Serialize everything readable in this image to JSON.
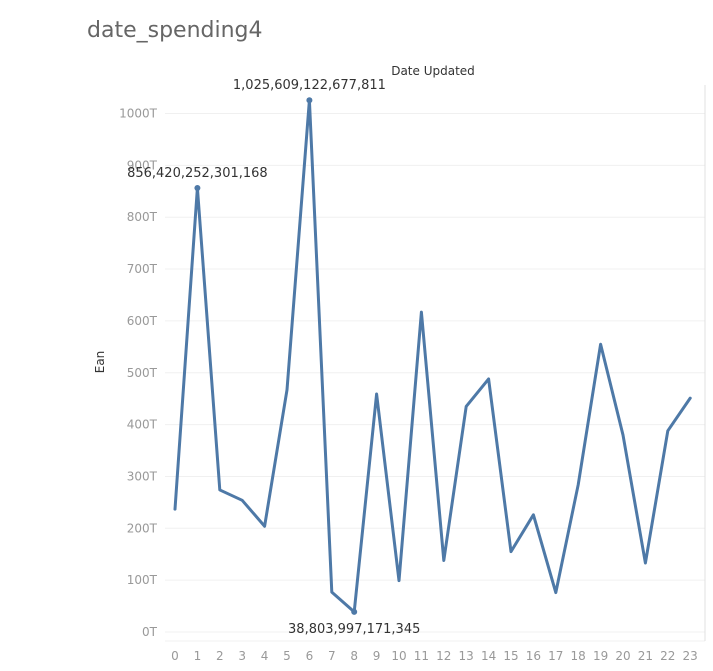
{
  "page_title": "date_spending4",
  "chart_data": {
    "type": "line",
    "title": "date_spending4",
    "xlabel": "Date Updated",
    "ylabel": "Ean",
    "x": [
      0,
      1,
      2,
      3,
      4,
      5,
      6,
      7,
      8,
      9,
      10,
      11,
      12,
      13,
      14,
      15,
      16,
      17,
      18,
      19,
      20,
      21,
      22,
      23
    ],
    "series": [
      {
        "values": [
          237,
          856.42,
          274,
          254,
          204,
          467,
          1025.61,
          77,
          38.8,
          459,
          99,
          617,
          138,
          435,
          488,
          155,
          226,
          76,
          284,
          555,
          380,
          133,
          388,
          451
        ]
      }
    ],
    "value_unit": "T",
    "ylim": [
      0,
      1000
    ],
    "yticks": [
      0,
      100,
      200,
      300,
      400,
      500,
      600,
      700,
      800,
      900,
      1000
    ],
    "ytick_labels": [
      "0T",
      "100T",
      "200T",
      "300T",
      "400T",
      "500T",
      "600T",
      "700T",
      "800T",
      "900T",
      "1000T"
    ],
    "annotations": [
      {
        "x": 1,
        "label": "856,420,252,301,168"
      },
      {
        "x": 6,
        "label": "1,025,609,122,677,811"
      },
      {
        "x": 8,
        "label": "38,803,997,171,345"
      }
    ],
    "grid": true,
    "line_color": "#4e79a7"
  }
}
